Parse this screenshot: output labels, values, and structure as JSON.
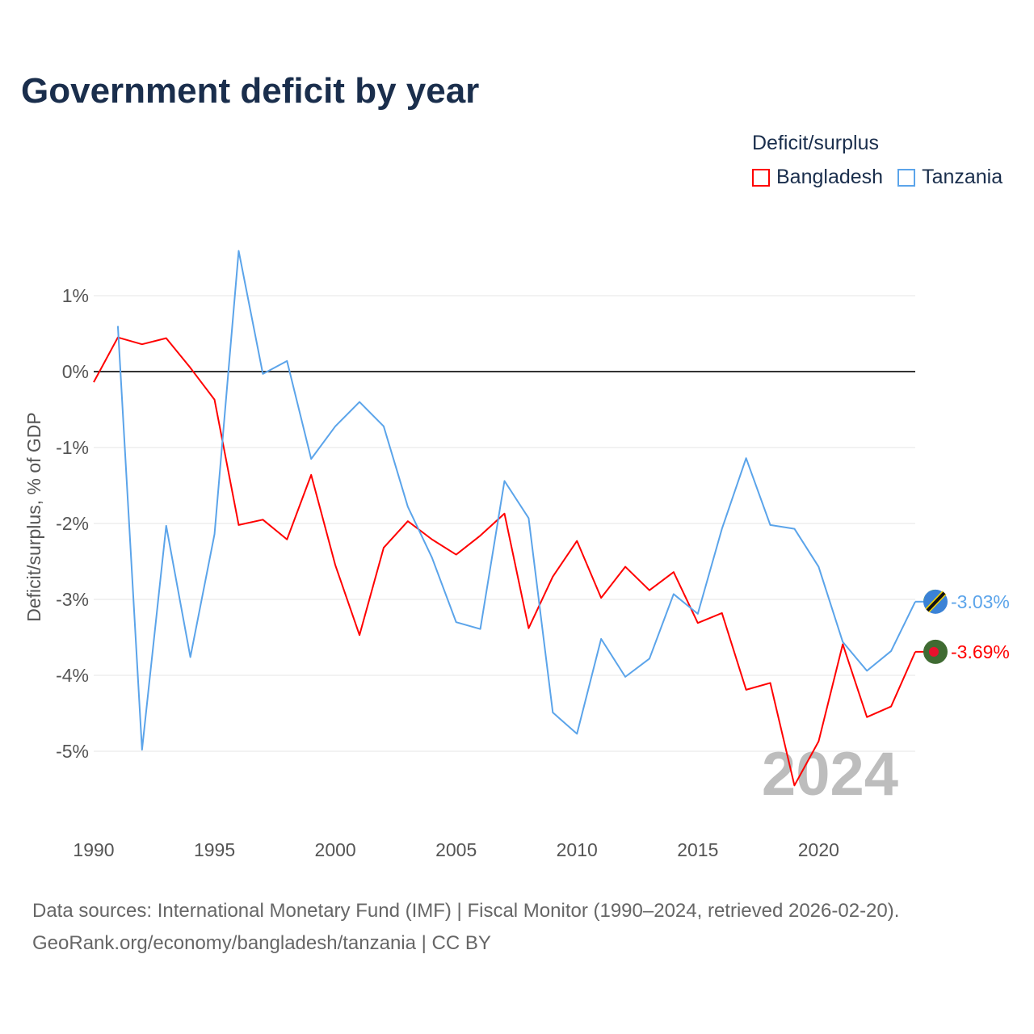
{
  "title": "Government deficit by year",
  "legend": {
    "title": "Deficit/surplus",
    "items": [
      {
        "label": "Bangladesh",
        "color": "#ff0000"
      },
      {
        "label": "Tanzania",
        "color": "#5ba4ea"
      }
    ]
  },
  "year_watermark": "2024",
  "source_line1": "Data sources: International Monetary Fund (IMF) | Fiscal Monitor (1990–2024, retrieved 2026-02-20).",
  "source_line2": "GeoRank.org/economy/bangladesh/tanzania | CC BY",
  "chart_data": {
    "type": "line",
    "title": "Government deficit by year",
    "ylabel": "Deficit/surplus, % of GDP",
    "xlabel": "",
    "xlim": [
      1990,
      2024
    ],
    "ylim": [
      -5.9,
      1.8
    ],
    "x_ticks": [
      1990,
      1995,
      2000,
      2005,
      2010,
      2015,
      2020
    ],
    "x_tick_labels": [
      "1990",
      "1995",
      "2000",
      "2005",
      "2010",
      "2015",
      "2020"
    ],
    "y_ticks": [
      1,
      0,
      -1,
      -2,
      -3,
      -4,
      -5
    ],
    "y_tick_labels": [
      "1%",
      "0%",
      "-1%",
      "-2%",
      "-3%",
      "-4%",
      "-5%"
    ],
    "grid": true,
    "legend_position": "top-right",
    "series": [
      {
        "name": "Bangladesh",
        "color": "#ff0000",
        "end_label": "-3.69%",
        "start_year": 1990,
        "values": [
          -0.14,
          0.45,
          0.36,
          0.44,
          0.05,
          -0.37,
          -2.02,
          -1.95,
          -2.21,
          -1.36,
          -2.55,
          -3.47,
          -2.32,
          -1.97,
          -2.21,
          -2.41,
          -2.16,
          -1.87,
          -3.38,
          -2.7,
          -2.23,
          -2.98,
          -2.57,
          -2.88,
          -2.64,
          -3.31,
          -3.18,
          -4.19,
          -4.1,
          -5.45,
          -4.87,
          -3.59,
          -4.55,
          -4.41,
          -3.69
        ]
      },
      {
        "name": "Tanzania",
        "color": "#5ba4ea",
        "end_label": "-3.03%",
        "start_year": 1991,
        "values": [
          0.6,
          -4.98,
          -2.03,
          -3.76,
          -2.14,
          1.59,
          -0.03,
          0.14,
          -1.15,
          -0.72,
          -0.4,
          -0.72,
          -1.78,
          -2.45,
          -3.3,
          -3.39,
          -1.44,
          -1.93,
          -4.49,
          -4.77,
          -3.52,
          -4.02,
          -3.78,
          -2.93,
          -3.19,
          -2.07,
          -1.14,
          -2.02,
          -2.07,
          -2.57,
          -3.56,
          -3.94,
          -3.68,
          -3.03
        ]
      }
    ]
  }
}
